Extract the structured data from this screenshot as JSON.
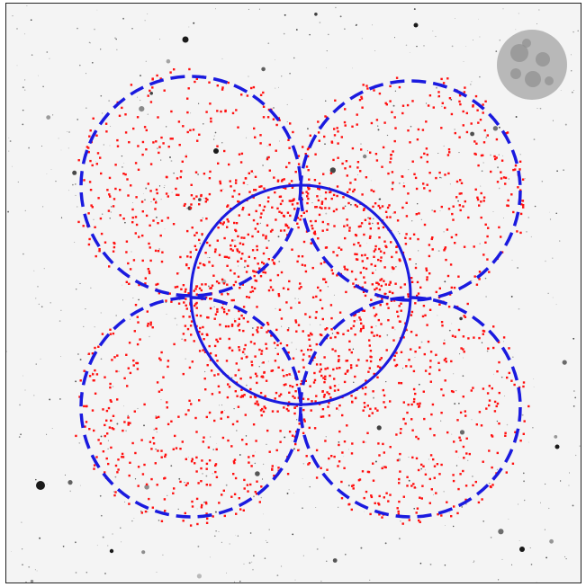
{
  "figure": {
    "background_color": "#f4f4f4",
    "star_color": "#1a1a1a",
    "point_color": "#ff1010",
    "circle_color": "#1a1adf",
    "moon_color": "#b8b8b8",
    "moon_shadow_color": "#8e8e8e"
  },
  "fields": [
    {
      "name": "center-field",
      "style": "solid"
    },
    {
      "name": "upper-left-field",
      "style": "dashed"
    },
    {
      "name": "upper-right-field",
      "style": "dashed"
    },
    {
      "name": "lower-left-field",
      "style": "dashed"
    },
    {
      "name": "lower-right-field",
      "style": "dashed"
    }
  ],
  "icons": {
    "moon": "moon-icon"
  }
}
